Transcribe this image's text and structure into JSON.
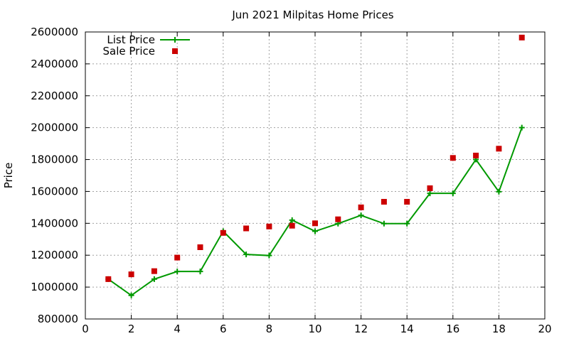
{
  "chart_data": {
    "type": "line",
    "title": "Jun 2021 Milpitas Home Prices",
    "xlabel": "",
    "ylabel": "Price",
    "xlim": [
      0,
      20
    ],
    "ylim": [
      800000,
      2600000
    ],
    "xticks": [
      0,
      2,
      4,
      6,
      8,
      10,
      12,
      14,
      16,
      18,
      20
    ],
    "yticks": [
      800000,
      1000000,
      1200000,
      1400000,
      1600000,
      1800000,
      2000000,
      2200000,
      2400000,
      2600000
    ],
    "grid": true,
    "legend_position": "top-left",
    "series": [
      {
        "name": "List Price",
        "style": "line-with-plus",
        "color": "#009900",
        "x": [
          1,
          2,
          3,
          4,
          5,
          6,
          7,
          8,
          9,
          10,
          11,
          12,
          13,
          14,
          15,
          16,
          17,
          18,
          19
        ],
        "y": [
          1050000,
          948000,
          1050000,
          1098000,
          1098000,
          1350000,
          1205000,
          1198000,
          1420000,
          1350000,
          1398000,
          1450000,
          1398000,
          1398000,
          1588000,
          1588000,
          1800000,
          1598000,
          2000000
        ]
      },
      {
        "name": "Sale Price",
        "style": "square-markers",
        "color": "#cc0000",
        "x": [
          1,
          2,
          3,
          4,
          5,
          6,
          7,
          8,
          9,
          10,
          11,
          12,
          13,
          14,
          15,
          16,
          17,
          18,
          19
        ],
        "y": [
          1050000,
          1080000,
          1100000,
          1185000,
          1250000,
          1340000,
          1368000,
          1380000,
          1385000,
          1400000,
          1425000,
          1500000,
          1535000,
          1535000,
          1620000,
          1810000,
          1825000,
          1868000,
          2565000
        ]
      }
    ]
  }
}
